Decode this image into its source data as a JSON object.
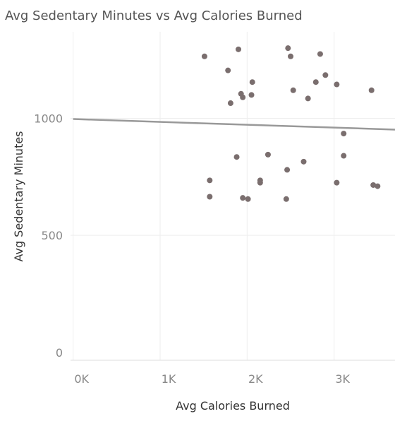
{
  "chart_data": {
    "type": "scatter",
    "title": "Avg Sedentary Minutes vs Avg Calories Burned",
    "xlabel": "Avg Calories Burned",
    "ylabel": "Avg Sedentary Minutes",
    "x_ticks": [
      {
        "value": 0,
        "label": "0K"
      },
      {
        "value": 1000,
        "label": "1K"
      },
      {
        "value": 2000,
        "label": "2K"
      },
      {
        "value": 3000,
        "label": "3K"
      }
    ],
    "y_ticks": [
      {
        "value": 0,
        "label": "0"
      },
      {
        "value": 500,
        "label": "500"
      },
      {
        "value": 1000,
        "label": "1000"
      }
    ],
    "xlim": [
      -30,
      3700
    ],
    "ylim": [
      -40,
      1370
    ],
    "grid": true,
    "point_color": "#7a6e6e",
    "trend_color": "#999999",
    "trend_line": {
      "x": [
        0,
        3700
      ],
      "y": [
        997,
        952
      ]
    },
    "points": [
      {
        "x": 1510,
        "y": 1265
      },
      {
        "x": 1900,
        "y": 1295
      },
      {
        "x": 2470,
        "y": 1300
      },
      {
        "x": 2840,
        "y": 1275
      },
      {
        "x": 2500,
        "y": 1265
      },
      {
        "x": 1780,
        "y": 1205
      },
      {
        "x": 2060,
        "y": 1155
      },
      {
        "x": 2790,
        "y": 1155
      },
      {
        "x": 2900,
        "y": 1185
      },
      {
        "x": 3030,
        "y": 1145
      },
      {
        "x": 3430,
        "y": 1120
      },
      {
        "x": 2530,
        "y": 1120
      },
      {
        "x": 1930,
        "y": 1105
      },
      {
        "x": 2050,
        "y": 1100
      },
      {
        "x": 1950,
        "y": 1090
      },
      {
        "x": 2700,
        "y": 1085
      },
      {
        "x": 1810,
        "y": 1065
      },
      {
        "x": 3110,
        "y": 935
      },
      {
        "x": 2240,
        "y": 845
      },
      {
        "x": 3110,
        "y": 840
      },
      {
        "x": 1880,
        "y": 835
      },
      {
        "x": 2650,
        "y": 815
      },
      {
        "x": 2460,
        "y": 780
      },
      {
        "x": 1570,
        "y": 735
      },
      {
        "x": 2150,
        "y": 735
      },
      {
        "x": 2150,
        "y": 725
      },
      {
        "x": 3030,
        "y": 725
      },
      {
        "x": 3450,
        "y": 715
      },
      {
        "x": 3500,
        "y": 710
      },
      {
        "x": 1570,
        "y": 665
      },
      {
        "x": 1950,
        "y": 660
      },
      {
        "x": 2010,
        "y": 655
      },
      {
        "x": 2450,
        "y": 655
      }
    ]
  }
}
